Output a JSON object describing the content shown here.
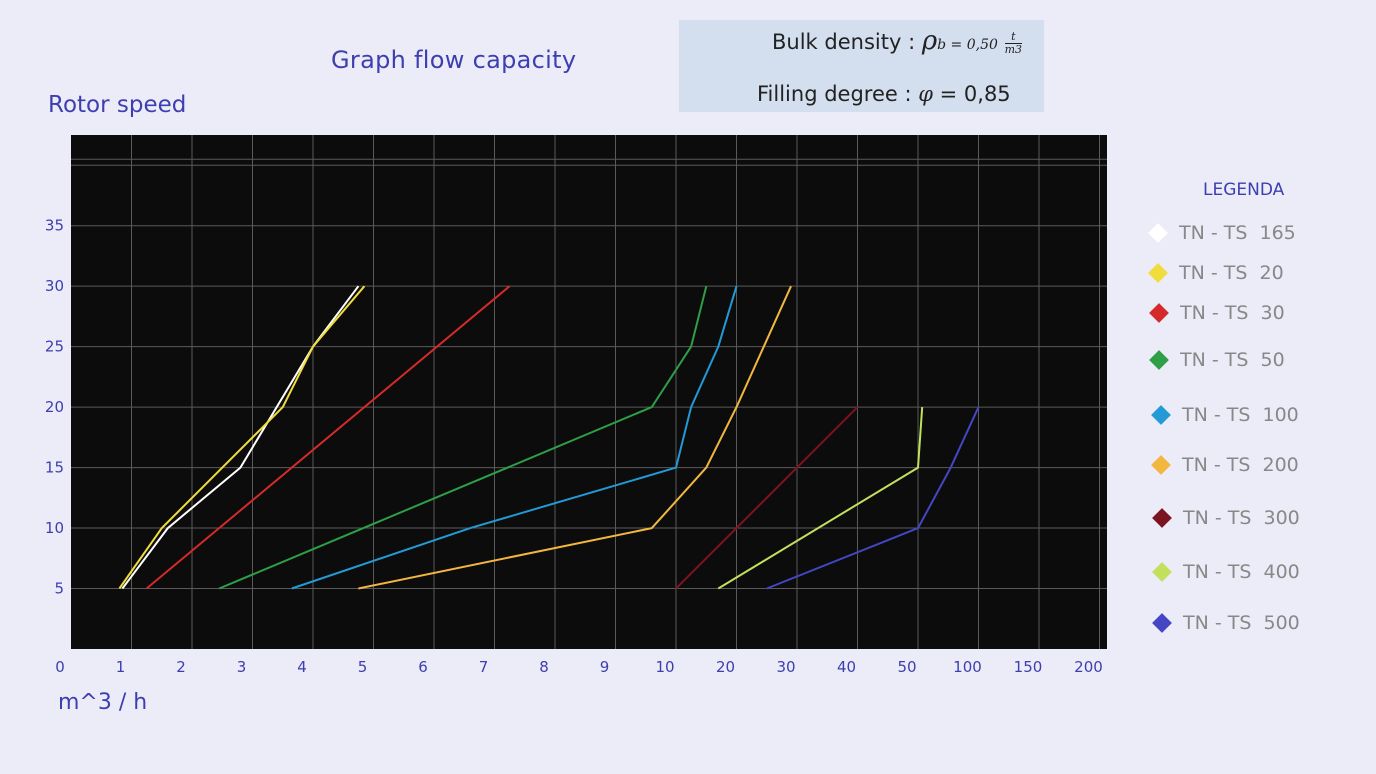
{
  "title": "Graph flow capacity",
  "y_axis_label": "Rotor speed",
  "x_axis_label": "m^3 / h",
  "info_box": {
    "bulk_density_label": "Bulk density",
    "rho_symbol": "ρ",
    "rho_subscript": "b = 0,50",
    "unit_numerator": "t",
    "unit_denominator": "m3",
    "filling_degree_label": "Filling degree :",
    "phi_symbol": "φ",
    "filling_degree_value": "= 0,85"
  },
  "legend_title": "LEGENDA",
  "chart_data": {
    "type": "line",
    "xlabel": "m^3 / h",
    "ylabel": "Rotor speed",
    "x_tick_labels": [
      "0",
      "1",
      "2",
      "3",
      "4",
      "5",
      "6",
      "7",
      "8",
      "9",
      "10",
      "20",
      "30",
      "40",
      "50",
      "100",
      "150",
      "200"
    ],
    "y_tick_labels": [
      "5",
      "10",
      "15",
      "20",
      "25",
      "30",
      "35"
    ],
    "ylim": [
      0,
      42.5
    ],
    "grid": true,
    "background": "#0c0c0c",
    "legend_position": "right",
    "x_scale_note": "piecewise: units of 1 from 0 to 10, then 10 per step to 50, then 50 per step to 200",
    "series": [
      {
        "name": "TN - TS  165",
        "color": "#ffffff",
        "points": [
          [
            0.85,
            5
          ],
          [
            1.6,
            10
          ],
          [
            2.8,
            15
          ],
          [
            4.0,
            25
          ],
          [
            4.75,
            30
          ]
        ]
      },
      {
        "name": "TN - TS  20",
        "color": "#f0dc3a",
        "points": [
          [
            0.8,
            5
          ],
          [
            1.5,
            10
          ],
          [
            2.5,
            15
          ],
          [
            3.5,
            20
          ],
          [
            4.0,
            25
          ],
          [
            4.85,
            30
          ]
        ]
      },
      {
        "name": "TN - TS  30",
        "color": "#d42a2a",
        "points": [
          [
            1.25,
            5
          ],
          [
            7.25,
            30
          ]
        ]
      },
      {
        "name": "TN - TS  50",
        "color": "#2e9e47",
        "points": [
          [
            2.45,
            5
          ],
          [
            9.6,
            20
          ],
          [
            12.5,
            25
          ],
          [
            15,
            30
          ]
        ]
      },
      {
        "name": "TN - TS  100",
        "color": "#239ad6",
        "points": [
          [
            3.65,
            5
          ],
          [
            6.6,
            10
          ],
          [
            10,
            15
          ],
          [
            12.5,
            20
          ],
          [
            17,
            25
          ],
          [
            20,
            30
          ]
        ]
      },
      {
        "name": "TN - TS  200",
        "color": "#f3b740",
        "points": [
          [
            4.75,
            5
          ],
          [
            9.6,
            10
          ],
          [
            15,
            15
          ],
          [
            20,
            20
          ],
          [
            29,
            30
          ]
        ]
      },
      {
        "name": "TN - TS  300",
        "color": "#7a1420",
        "points": [
          [
            10,
            5
          ],
          [
            40,
            20
          ]
        ]
      },
      {
        "name": "TN - TS  400",
        "color": "#c2e05c",
        "points": [
          [
            17,
            5
          ],
          [
            50,
            15
          ],
          [
            53.5,
            20
          ]
        ]
      },
      {
        "name": "TN - TS  500",
        "color": "#4446c4",
        "points": [
          [
            25,
            5
          ],
          [
            50,
            10
          ],
          [
            77,
            15
          ],
          [
            100,
            20
          ]
        ]
      }
    ]
  }
}
